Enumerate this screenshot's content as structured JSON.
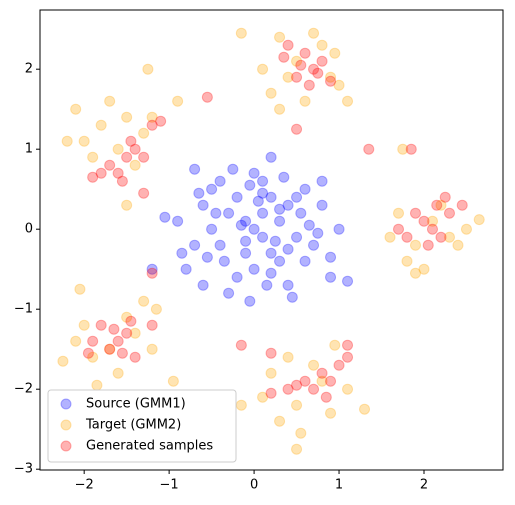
{
  "chart_data": {
    "type": "scatter",
    "xlim": [
      -2.52,
      2.93
    ],
    "ylim": [
      -3.01,
      2.74
    ],
    "xticks": [
      {
        "value": -2,
        "label": "−2"
      },
      {
        "value": -1,
        "label": "−1"
      },
      0,
      1,
      2
    ],
    "yticks": [
      {
        "value": -3,
        "label": "−3"
      },
      {
        "value": -2,
        "label": "−2"
      },
      {
        "value": -1,
        "label": "−1"
      },
      0,
      1,
      2
    ],
    "legend": "lower left",
    "alpha": 0.3,
    "series": [
      {
        "name": "Source (GMM1)",
        "color": "#0000ff",
        "x": [
          -0.1,
          0.2,
          0.5,
          -0.4,
          0.1,
          -0.6,
          0.3,
          0.0,
          -0.2,
          0.7,
          -0.8,
          0.4,
          -0.3,
          0.6,
          0.1,
          -0.5,
          0.2,
          -0.9,
          0.8,
          0.0,
          -0.1,
          0.3,
          -0.4,
          0.5,
          -0.7,
          0.9,
          -0.2,
          0.1,
          0.4,
          -0.3,
          0.6,
          -0.6,
          0.2,
          -0.5,
          0.0,
          -0.15,
          0.25,
          -1.05,
          -1.2,
          1.1,
          0.8,
          -0.7,
          0.45,
          -0.05,
          0.35,
          -0.35,
          0.15,
          0.65,
          -0.25,
          0.05,
          -0.55,
          0.75,
          -0.85,
          0.3,
          -0.1,
          0.55,
          0.1,
          -0.45,
          0.2,
          1.0,
          -0.65,
          0.4,
          -0.05,
          0.9
        ],
        "values": [
          0.1,
          -0.3,
          0.4,
          -0.2,
          0.6,
          0.3,
          0.1,
          -0.5,
          0.4,
          -0.2,
          -0.5,
          -0.7,
          -0.8,
          0.5,
          0.2,
          0.0,
          0.9,
          0.1,
          0.3,
          0.0,
          -0.3,
          -0.4,
          0.6,
          -0.1,
          -0.2,
          -0.6,
          -0.6,
          -0.1,
          0.3,
          0.2,
          -0.4,
          -0.7,
          0.4,
          0.5,
          0.7,
          0.05,
          -0.15,
          0.15,
          -0.5,
          -0.65,
          0.6,
          0.75,
          -0.85,
          -0.9,
          0.65,
          -0.4,
          -0.7,
          0.05,
          0.75,
          0.35,
          -0.35,
          -0.05,
          -0.3,
          0.25,
          -0.15,
          0.2,
          0.45,
          0.2,
          -0.55,
          0.0,
          0.45,
          -0.25,
          0.55,
          -0.35
        ]
      },
      {
        "name": "Target (GMM2)",
        "color": "#ffa500",
        "x": [
          0.3,
          0.8,
          0.5,
          0.9,
          0.2,
          0.6,
          1.0,
          0.4,
          0.7,
          0.1,
          1.1,
          0.3,
          -0.15,
          0.95,
          -2.1,
          -1.8,
          -1.5,
          -1.9,
          -1.6,
          -1.3,
          -2.0,
          -1.4,
          -1.7,
          -1.2,
          -2.2,
          -1.5,
          -1.25,
          -0.9,
          1.7,
          2.1,
          1.9,
          2.3,
          1.8,
          2.2,
          2.0,
          1.6,
          2.5,
          2.65,
          1.75,
          1.9,
          2.4,
          -2.0,
          -1.7,
          -1.4,
          -1.9,
          -1.5,
          -1.2,
          -2.1,
          -1.6,
          -1.3,
          -2.05,
          -1.85,
          -2.25,
          -1.15,
          -0.95,
          0.2,
          0.5,
          0.8,
          0.4,
          0.9,
          0.1,
          0.7,
          1.1,
          0.3,
          0.55,
          0.5,
          -0.15,
          1.3,
          0.95
        ],
        "values": [
          2.4,
          2.3,
          2.1,
          1.9,
          1.7,
          1.6,
          1.8,
          1.9,
          2.45,
          2.0,
          1.6,
          1.5,
          2.45,
          2.2,
          1.5,
          1.3,
          1.4,
          0.9,
          1.0,
          1.2,
          1.1,
          0.8,
          1.6,
          1.4,
          1.1,
          0.3,
          2.0,
          1.6,
          0.2,
          0.1,
          -0.2,
          -0.1,
          -0.4,
          0.3,
          -0.5,
          -0.1,
          0.0,
          0.12,
          1.0,
          -0.55,
          -0.2,
          -1.2,
          -1.5,
          -1.3,
          -1.6,
          -1.1,
          -1.5,
          -1.4,
          -1.8,
          -0.9,
          -0.75,
          -1.95,
          -1.65,
          -1.0,
          -1.9,
          -1.8,
          -2.2,
          -1.9,
          -1.6,
          -2.3,
          -2.1,
          -1.7,
          -2.0,
          -2.4,
          -2.55,
          -2.75,
          -2.2,
          -2.25,
          -1.45
        ]
      },
      {
        "name": "Generated samples",
        "color": "#ff0000",
        "x": [
          0.6,
          0.7,
          0.5,
          0.8,
          0.65,
          0.4,
          0.75,
          0.55,
          0.9,
          0.35,
          0.5,
          -0.55,
          1.35,
          -1.6,
          -1.5,
          -1.7,
          -1.4,
          -1.55,
          -1.3,
          -1.8,
          -1.2,
          -1.1,
          -1.45,
          -1.9,
          -1.3,
          2.0,
          2.1,
          1.9,
          2.2,
          1.8,
          2.3,
          2.05,
          1.7,
          2.25,
          2.45,
          1.85,
          2.15,
          -1.6,
          -1.5,
          -1.7,
          -1.4,
          -1.8,
          -1.55,
          -1.9,
          -1.45,
          -1.2,
          -1.2,
          -1.95,
          -1.65,
          0.8,
          0.9,
          0.7,
          1.0,
          0.6,
          1.1,
          0.85,
          0.5,
          0.2,
          0.2,
          -0.15,
          0.4,
          1.1
        ],
        "values": [
          2.2,
          2.0,
          1.9,
          2.1,
          1.8,
          2.3,
          1.95,
          2.05,
          1.85,
          2.15,
          1.25,
          1.65,
          1.0,
          0.7,
          0.9,
          0.8,
          1.0,
          0.6,
          0.9,
          0.7,
          1.3,
          1.35,
          1.1,
          0.65,
          0.45,
          0.1,
          0.0,
          0.2,
          -0.1,
          -0.1,
          0.2,
          -0.2,
          0.0,
          0.4,
          0.3,
          1.0,
          0.3,
          -1.4,
          -1.3,
          -1.5,
          -1.6,
          -1.2,
          -1.55,
          -1.4,
          -1.15,
          -0.55,
          -1.2,
          -1.55,
          -1.25,
          -1.8,
          -1.9,
          -2.0,
          -1.7,
          -1.9,
          -1.6,
          -2.1,
          -1.95,
          -1.55,
          -2.05,
          -1.45,
          -2.0,
          -1.45
        ]
      }
    ]
  }
}
